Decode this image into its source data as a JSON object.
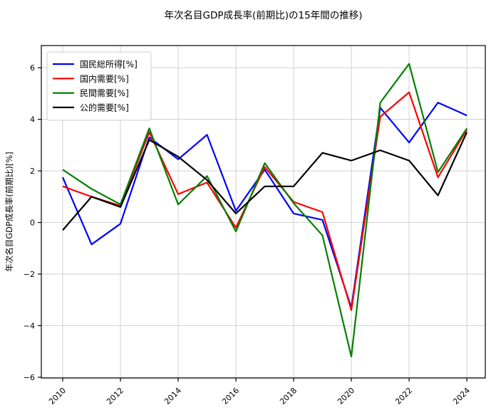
{
  "title": "年次名目GDP成長率(前期比)の15年間の推移)",
  "chart_data": {
    "type": "line",
    "title": "年次名目GDP成長率(前期比)の15年間の推移)",
    "xlabel": "",
    "ylabel": "年次名目GDP成長率(前期比)[%]",
    "x": [
      2010,
      2011,
      2012,
      2013,
      2014,
      2015,
      2016,
      2017,
      2018,
      2019,
      2020,
      2021,
      2022,
      2023,
      2024
    ],
    "series": [
      {
        "name": "国民総所得[%]",
        "color": "#0000ff",
        "values": [
          1.75,
          -0.85,
          -0.05,
          3.3,
          2.45,
          3.4,
          0.45,
          2.05,
          0.35,
          0.1,
          -3.3,
          4.45,
          3.1,
          4.65,
          4.15
        ]
      },
      {
        "name": "国内需要[%]",
        "color": "#ff0000",
        "values": [
          1.4,
          1.0,
          0.65,
          3.5,
          1.1,
          1.55,
          -0.2,
          2.15,
          0.8,
          0.4,
          -3.4,
          4.1,
          5.05,
          1.75,
          3.6
        ]
      },
      {
        "name": "民間需要[%]",
        "color": "#008000",
        "values": [
          2.05,
          1.3,
          0.7,
          3.65,
          0.7,
          1.8,
          -0.35,
          2.3,
          0.75,
          -0.5,
          -5.2,
          4.65,
          6.15,
          1.95,
          3.65
        ]
      },
      {
        "name": "公的需要[%]",
        "color": "#000000",
        "values": [
          -0.3,
          1.0,
          0.6,
          3.2,
          2.55,
          1.65,
          0.35,
          1.4,
          1.4,
          2.7,
          2.4,
          2.8,
          2.4,
          1.05,
          3.5
        ]
      }
    ],
    "xlim": [
      2009.26,
      2024.64
    ],
    "ylim": [
      -6.03,
      6.86
    ],
    "xticks": [
      2010,
      2012,
      2014,
      2016,
      2018,
      2020,
      2022,
      2024
    ],
    "xtick_labels": [
      "2010",
      "2012",
      "2014",
      "2016",
      "2018",
      "2020",
      "2022",
      "2024"
    ],
    "yticks": [
      6,
      4,
      2,
      0,
      -2,
      -4,
      -6
    ],
    "ytick_labels": [
      "6",
      "4",
      "2",
      "0",
      "−2",
      "−4",
      "−6"
    ],
    "grid": true,
    "grid_color": "#cccccc",
    "spine_color": "#000000",
    "legend_position": "upper-left",
    "line_width": 2.2
  }
}
